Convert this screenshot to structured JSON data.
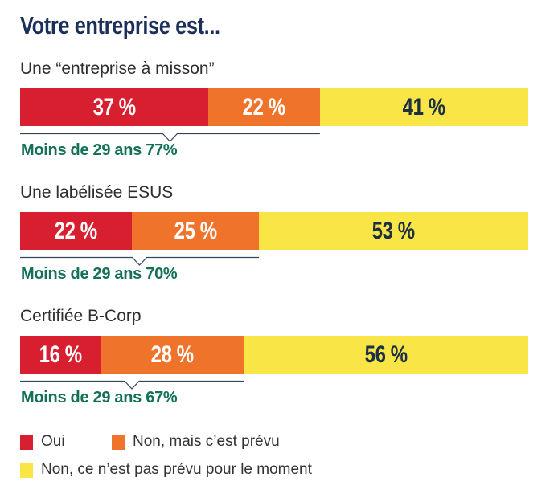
{
  "title": "Votre entreprise est...",
  "colors": {
    "oui": "#d81f30",
    "prevu": "#f0732b",
    "pas_prevu": "#f9e546",
    "text_light": "#ffffff",
    "text_dark": "#1b2f45",
    "subtext": "#137158",
    "line": "#35445e"
  },
  "legend": [
    {
      "label": "Oui",
      "color_key": "oui"
    },
    {
      "label": "Non, mais c’est prévu",
      "color_key": "prevu"
    },
    {
      "label": "Non, ce n’est pas prévu pour le moment",
      "color_key": "pas_prevu"
    }
  ],
  "chart_data": {
    "type": "bar",
    "orientation": "horizontal-stacked-100",
    "title": "Votre entreprise est...",
    "categories": [
      "Une “entreprise à misson”",
      "Une labélisée ESUS",
      "Certifiée B-Corp"
    ],
    "series": [
      {
        "name": "Oui",
        "values": [
          37,
          22,
          16
        ],
        "labels": [
          "37 %",
          "22 %",
          "16 %"
        ]
      },
      {
        "name": "Non, mais c’est prévu",
        "values": [
          22,
          25,
          28
        ],
        "labels": [
          "22 %",
          "25 %",
          "28 %"
        ]
      },
      {
        "name": "Non, ce n’est pas prévu pour le moment",
        "values": [
          41,
          53,
          56
        ],
        "labels": [
          "41 %",
          "53 %",
          "56 %"
        ]
      }
    ],
    "annotations": [
      {
        "category": "Une “entreprise à misson”",
        "text": "Moins de 29 ans 77%",
        "value": 77
      },
      {
        "category": "Une labélisée ESUS",
        "text": "Moins de 29 ans 70%",
        "value": 70
      },
      {
        "category": "Certifiée B-Corp",
        "text": "Moins de 29 ans 67%",
        "value": 67
      }
    ],
    "xlim": [
      0,
      100
    ],
    "legend_position": "bottom-left",
    "grid": false
  }
}
